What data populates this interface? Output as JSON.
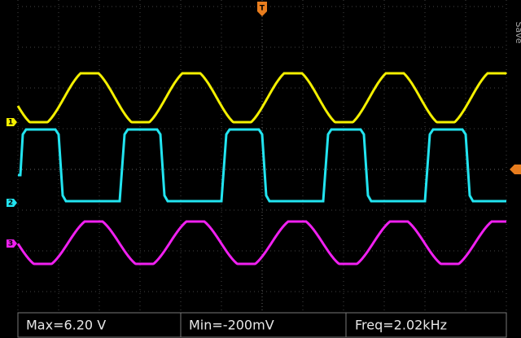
{
  "trigger_label": "T",
  "side_label": "Save",
  "channels": [
    "1",
    "2",
    "3"
  ],
  "measurements": [
    "Max=6.20 V",
    "Min=-200mV",
    "Freq=2.02kHz"
  ]
}
